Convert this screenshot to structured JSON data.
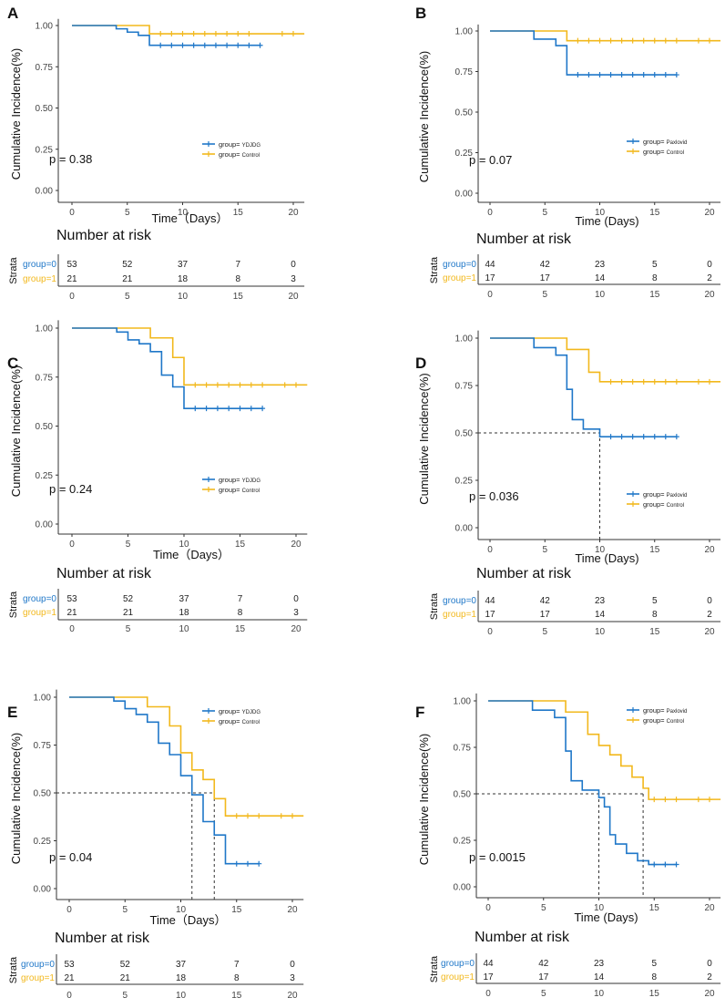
{
  "colors": {
    "group0": "#1f77c8",
    "group1": "#f2b81c",
    "axis": "#333333",
    "dash": "#333333"
  },
  "common": {
    "ylabel": "Cumulative Incidence(%)",
    "xlabel": "Time（Days）",
    "xlabel_b": "Time (Days)",
    "risk_title": "Number at risk",
    "strata_label": "Strata",
    "legend_prefix": "group= ",
    "row0_label": "group=0",
    "row1_label": "group=1",
    "x_ticks": [
      "0",
      "5",
      "10",
      "15",
      "20"
    ],
    "y_ticks": [
      "0.00",
      "0.25",
      "0.50",
      "0.75",
      "1.00"
    ]
  },
  "chart_data": [
    {
      "panel": "A",
      "type": "line",
      "xlabel": "Time（Days）",
      "ylabel": "Cumulative Incidence(%)",
      "xlim": [
        0,
        21
      ],
      "ylim": [
        0,
        1.05
      ],
      "pvalue": "p = 0.38",
      "series": [
        {
          "name": "YDJDG",
          "steps": [
            [
              0,
              1
            ],
            [
              4,
              0.98
            ],
            [
              5,
              0.96
            ],
            [
              6,
              0.94
            ],
            [
              7,
              0.88
            ],
            [
              17,
              0.88
            ]
          ],
          "censor": [
            8,
            9,
            10,
            11,
            12,
            13,
            14,
            15,
            16,
            17
          ]
        },
        {
          "name": "Control",
          "steps": [
            [
              0,
              1
            ],
            [
              7,
              0.95
            ],
            [
              21,
              0.95
            ]
          ],
          "censor": [
            8,
            9,
            10,
            11,
            12,
            13,
            14,
            15,
            16,
            19,
            20
          ]
        }
      ],
      "risk_table": {
        "rows": [
          [
            "53",
            "52",
            "37",
            "7",
            "0"
          ],
          [
            "21",
            "21",
            "18",
            "8",
            "3"
          ]
        ]
      }
    },
    {
      "panel": "B",
      "type": "line",
      "xlabel": "Time (Days)",
      "ylabel": "Cumulative Incidence(%)",
      "xlim": [
        0,
        21
      ],
      "ylim": [
        0,
        1.05
      ],
      "pvalue": "p = 0.07",
      "series": [
        {
          "name": "Paxlovid",
          "steps": [
            [
              0,
              1
            ],
            [
              4,
              0.95
            ],
            [
              6,
              0.91
            ],
            [
              7,
              0.73
            ],
            [
              17,
              0.73
            ]
          ],
          "censor": [
            8,
            9,
            10,
            11,
            12,
            13,
            14,
            15,
            16,
            17
          ]
        },
        {
          "name": "Control",
          "steps": [
            [
              0,
              1
            ],
            [
              7,
              0.94
            ],
            [
              21,
              0.94
            ]
          ],
          "censor": [
            8,
            9,
            10,
            11,
            12,
            13,
            14,
            15,
            16,
            17,
            19,
            20
          ]
        }
      ],
      "risk_table": {
        "rows": [
          [
            "44",
            "42",
            "23",
            "5",
            "0"
          ],
          [
            "17",
            "17",
            "14",
            "8",
            "2"
          ]
        ]
      }
    },
    {
      "panel": "C",
      "type": "line",
      "xlabel": "Time（Days）",
      "ylabel": "Cumulative Incidence(%)",
      "xlim": [
        0,
        21
      ],
      "ylim": [
        0,
        1.05
      ],
      "pvalue": "p = 0.24",
      "series": [
        {
          "name": "YDJDG",
          "steps": [
            [
              0,
              1
            ],
            [
              4,
              0.98
            ],
            [
              5,
              0.94
            ],
            [
              6,
              0.92
            ],
            [
              7,
              0.88
            ],
            [
              8,
              0.76
            ],
            [
              9,
              0.7
            ],
            [
              10,
              0.59
            ],
            [
              17,
              0.59
            ]
          ],
          "censor": [
            11,
            12,
            13,
            14,
            15,
            16,
            17
          ]
        },
        {
          "name": "Control",
          "steps": [
            [
              0,
              1
            ],
            [
              7,
              0.95
            ],
            [
              9,
              0.85
            ],
            [
              10,
              0.71
            ],
            [
              21,
              0.71
            ]
          ],
          "censor": [
            11,
            12,
            13,
            14,
            15,
            16,
            17,
            19,
            20
          ]
        }
      ],
      "risk_table": {
        "rows": [
          [
            "53",
            "52",
            "37",
            "7",
            "0"
          ],
          [
            "21",
            "21",
            "18",
            "8",
            "3"
          ]
        ]
      }
    },
    {
      "panel": "D",
      "type": "line",
      "xlabel": "Time (Days)",
      "ylabel": "Cumulative Incidence(%)",
      "xlim": [
        0,
        21
      ],
      "ylim": [
        0,
        1.05
      ],
      "pvalue": "p = 0.036",
      "median_lines": [
        10
      ],
      "series": [
        {
          "name": "Paxlovid",
          "steps": [
            [
              0,
              1
            ],
            [
              4,
              0.95
            ],
            [
              6,
              0.91
            ],
            [
              7,
              0.73
            ],
            [
              7.5,
              0.57
            ],
            [
              8.5,
              0.52
            ],
            [
              10,
              0.48
            ],
            [
              17,
              0.48
            ]
          ],
          "censor": [
            11,
            12,
            13,
            14,
            15,
            16,
            17
          ]
        },
        {
          "name": "Control",
          "steps": [
            [
              0,
              1
            ],
            [
              7,
              0.94
            ],
            [
              9,
              0.82
            ],
            [
              10,
              0.77
            ],
            [
              21,
              0.77
            ]
          ],
          "censor": [
            11,
            12,
            13,
            14,
            15,
            16,
            17,
            19,
            20
          ]
        }
      ],
      "risk_table": {
        "rows": [
          [
            "44",
            "42",
            "23",
            "5",
            "0"
          ],
          [
            "17",
            "17",
            "14",
            "8",
            "2"
          ]
        ]
      }
    },
    {
      "panel": "E",
      "type": "line",
      "xlabel": "Time（Days）",
      "ylabel": "Cumulative Incidence(%)",
      "xlim": [
        0,
        21
      ],
      "ylim": [
        0,
        1.05
      ],
      "pvalue": "p = 0.04",
      "median_lines": [
        11,
        13
      ],
      "series": [
        {
          "name": "YDJDG",
          "steps": [
            [
              0,
              1
            ],
            [
              4,
              0.98
            ],
            [
              5,
              0.94
            ],
            [
              6,
              0.91
            ],
            [
              7,
              0.87
            ],
            [
              8,
              0.76
            ],
            [
              9,
              0.7
            ],
            [
              10,
              0.59
            ],
            [
              11,
              0.49
            ],
            [
              12,
              0.35
            ],
            [
              13,
              0.28
            ],
            [
              14,
              0.13
            ],
            [
              17,
              0.13
            ]
          ],
          "censor": [
            15,
            16,
            17
          ]
        },
        {
          "name": "Control",
          "steps": [
            [
              0,
              1
            ],
            [
              7,
              0.95
            ],
            [
              9,
              0.85
            ],
            [
              10,
              0.71
            ],
            [
              11,
              0.62
            ],
            [
              12,
              0.57
            ],
            [
              13,
              0.47
            ],
            [
              14,
              0.38
            ],
            [
              21,
              0.38
            ]
          ],
          "censor": [
            15,
            16,
            17,
            19,
            20
          ]
        }
      ],
      "risk_table": {
        "rows": [
          [
            "53",
            "52",
            "37",
            "7",
            "0"
          ],
          [
            "21",
            "21",
            "18",
            "8",
            "3"
          ]
        ]
      }
    },
    {
      "panel": "F",
      "type": "line",
      "xlabel": "Time (Days)",
      "ylabel": "Cumulative Incidence(%)",
      "xlim": [
        0,
        21
      ],
      "ylim": [
        0,
        1.05
      ],
      "pvalue": "p = 0.0015",
      "median_lines": [
        10,
        14
      ],
      "series": [
        {
          "name": "Paxlovid",
          "steps": [
            [
              0,
              1
            ],
            [
              4,
              0.95
            ],
            [
              6,
              0.91
            ],
            [
              7,
              0.73
            ],
            [
              7.5,
              0.57
            ],
            [
              8.5,
              0.52
            ],
            [
              10,
              0.48
            ],
            [
              10.5,
              0.43
            ],
            [
              11,
              0.28
            ],
            [
              11.5,
              0.23
            ],
            [
              12.5,
              0.18
            ],
            [
              13.5,
              0.14
            ],
            [
              14.5,
              0.12
            ],
            [
              17,
              0.12
            ]
          ],
          "censor": [
            15,
            16,
            17
          ]
        },
        {
          "name": "Control",
          "steps": [
            [
              0,
              1
            ],
            [
              7,
              0.94
            ],
            [
              9,
              0.82
            ],
            [
              10,
              0.76
            ],
            [
              11,
              0.71
            ],
            [
              12,
              0.65
            ],
            [
              13,
              0.59
            ],
            [
              14,
              0.53
            ],
            [
              14.5,
              0.47
            ],
            [
              21,
              0.47
            ]
          ],
          "censor": [
            15,
            16,
            17,
            19,
            20
          ]
        }
      ],
      "risk_table": {
        "rows": [
          [
            "44",
            "42",
            "23",
            "5",
            "0"
          ],
          [
            "17",
            "17",
            "14",
            "8",
            "2"
          ]
        ]
      }
    }
  ]
}
